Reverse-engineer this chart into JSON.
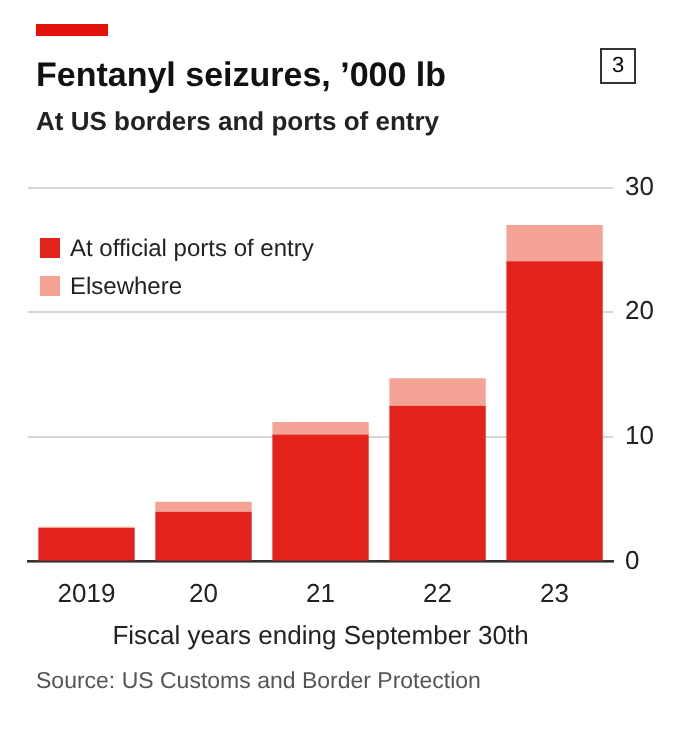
{
  "chart_data": {
    "type": "bar",
    "title": "Fentanyl seizures, ’000 lb",
    "subtitle": "At US borders and ports of entry",
    "xlabel": "Fiscal years ending September 30th",
    "categories": [
      "2019",
      "20",
      "21",
      "22",
      "23"
    ],
    "series": [
      {
        "name": "At official ports of entry",
        "color": "#e3231b",
        "values": [
          2.7,
          4.0,
          10.2,
          12.5,
          24.1
        ]
      },
      {
        "name": "Elsewhere",
        "color": "#f5a394",
        "values": [
          0.1,
          0.8,
          1.0,
          2.2,
          2.9
        ]
      }
    ],
    "stacked": true,
    "ylim": [
      0,
      30
    ],
    "yticks": [
      0,
      10,
      20,
      30
    ],
    "grid": "y",
    "legend": "top left",
    "annotations": [
      "3",
      "Source: US Customs and Border Protection"
    ]
  }
}
